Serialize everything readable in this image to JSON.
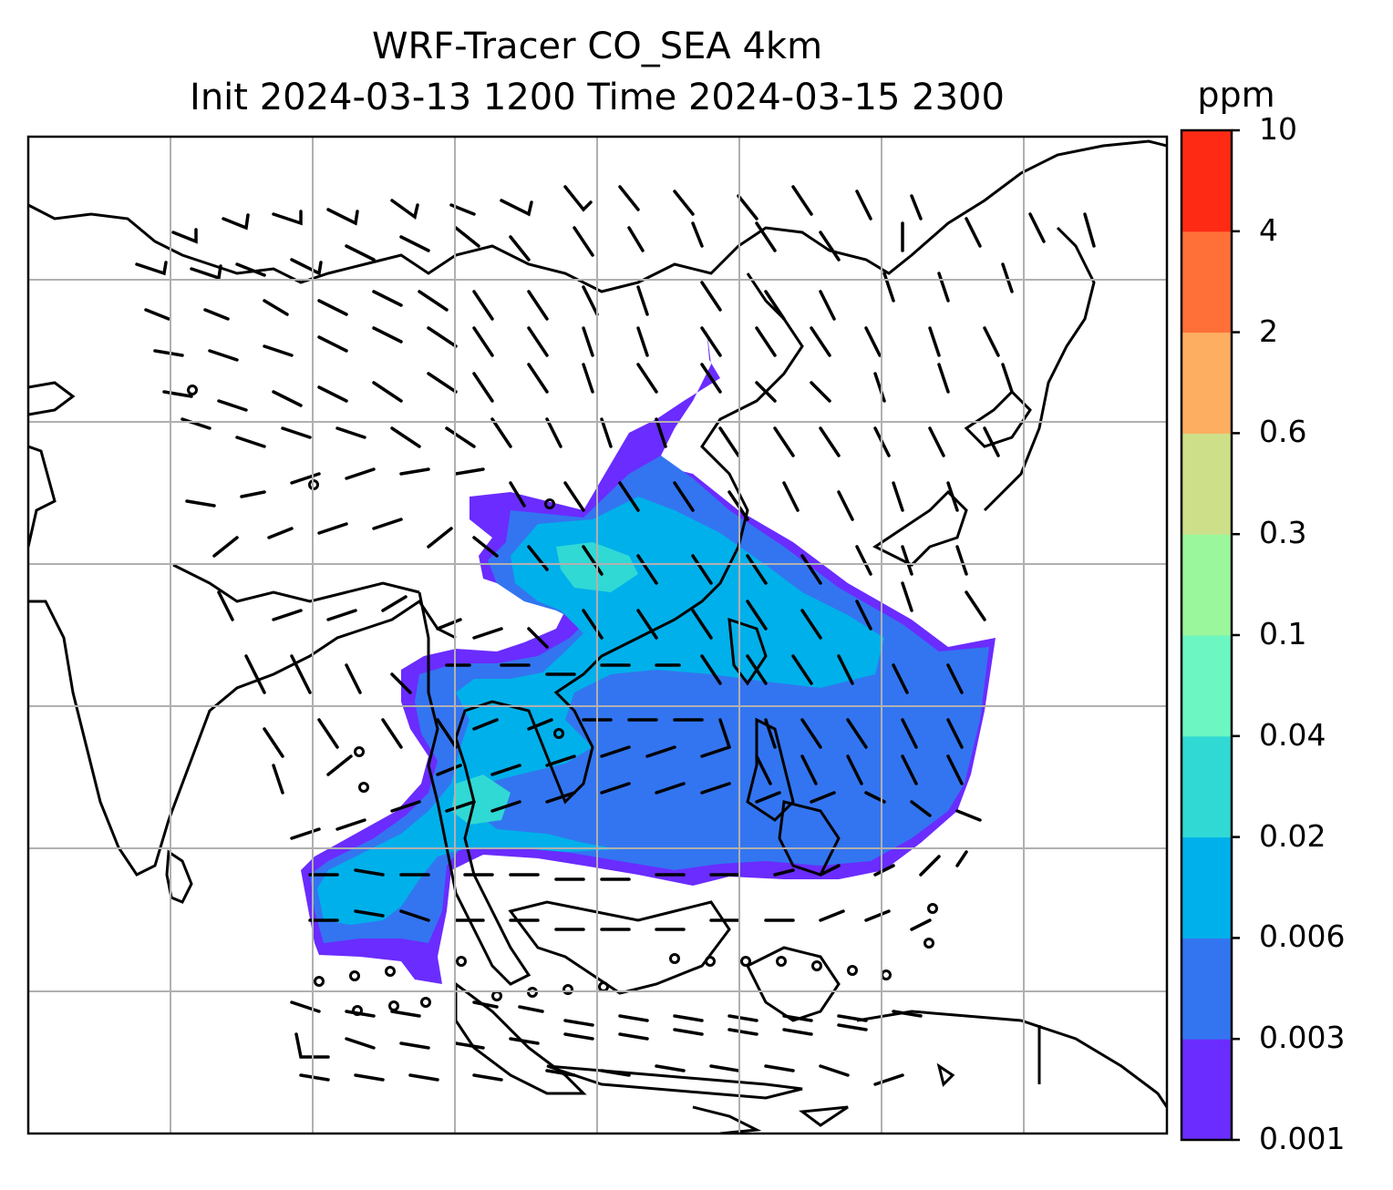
{
  "title": {
    "line1": "WRF-Tracer CO_SEA 4km",
    "line2": "Init 2024-03-13 1200 Time 2024-03-15 2300"
  },
  "colorbar": {
    "unit": "ppm",
    "ticks": [
      "0.001",
      "0.003",
      "0.006",
      "0.02",
      "0.04",
      "0.1",
      "0.3",
      "0.6",
      "2",
      "4",
      "10"
    ],
    "colors": [
      "#6a2cff",
      "#3375f0",
      "#00b0ea",
      "#30d9d4",
      "#6cf6c1",
      "#9bf79b",
      "#cde089",
      "#fdae61",
      "#ff7038",
      "#ff2a14"
    ]
  },
  "map": {
    "land_outline_color": "#000000",
    "grid_color": "#b0b0b0",
    "plume_shades": [
      "#6a2cff",
      "#3375f0",
      "#00b0ea",
      "#30d9d4"
    ],
    "wind_barb_color": "#000000"
  }
}
